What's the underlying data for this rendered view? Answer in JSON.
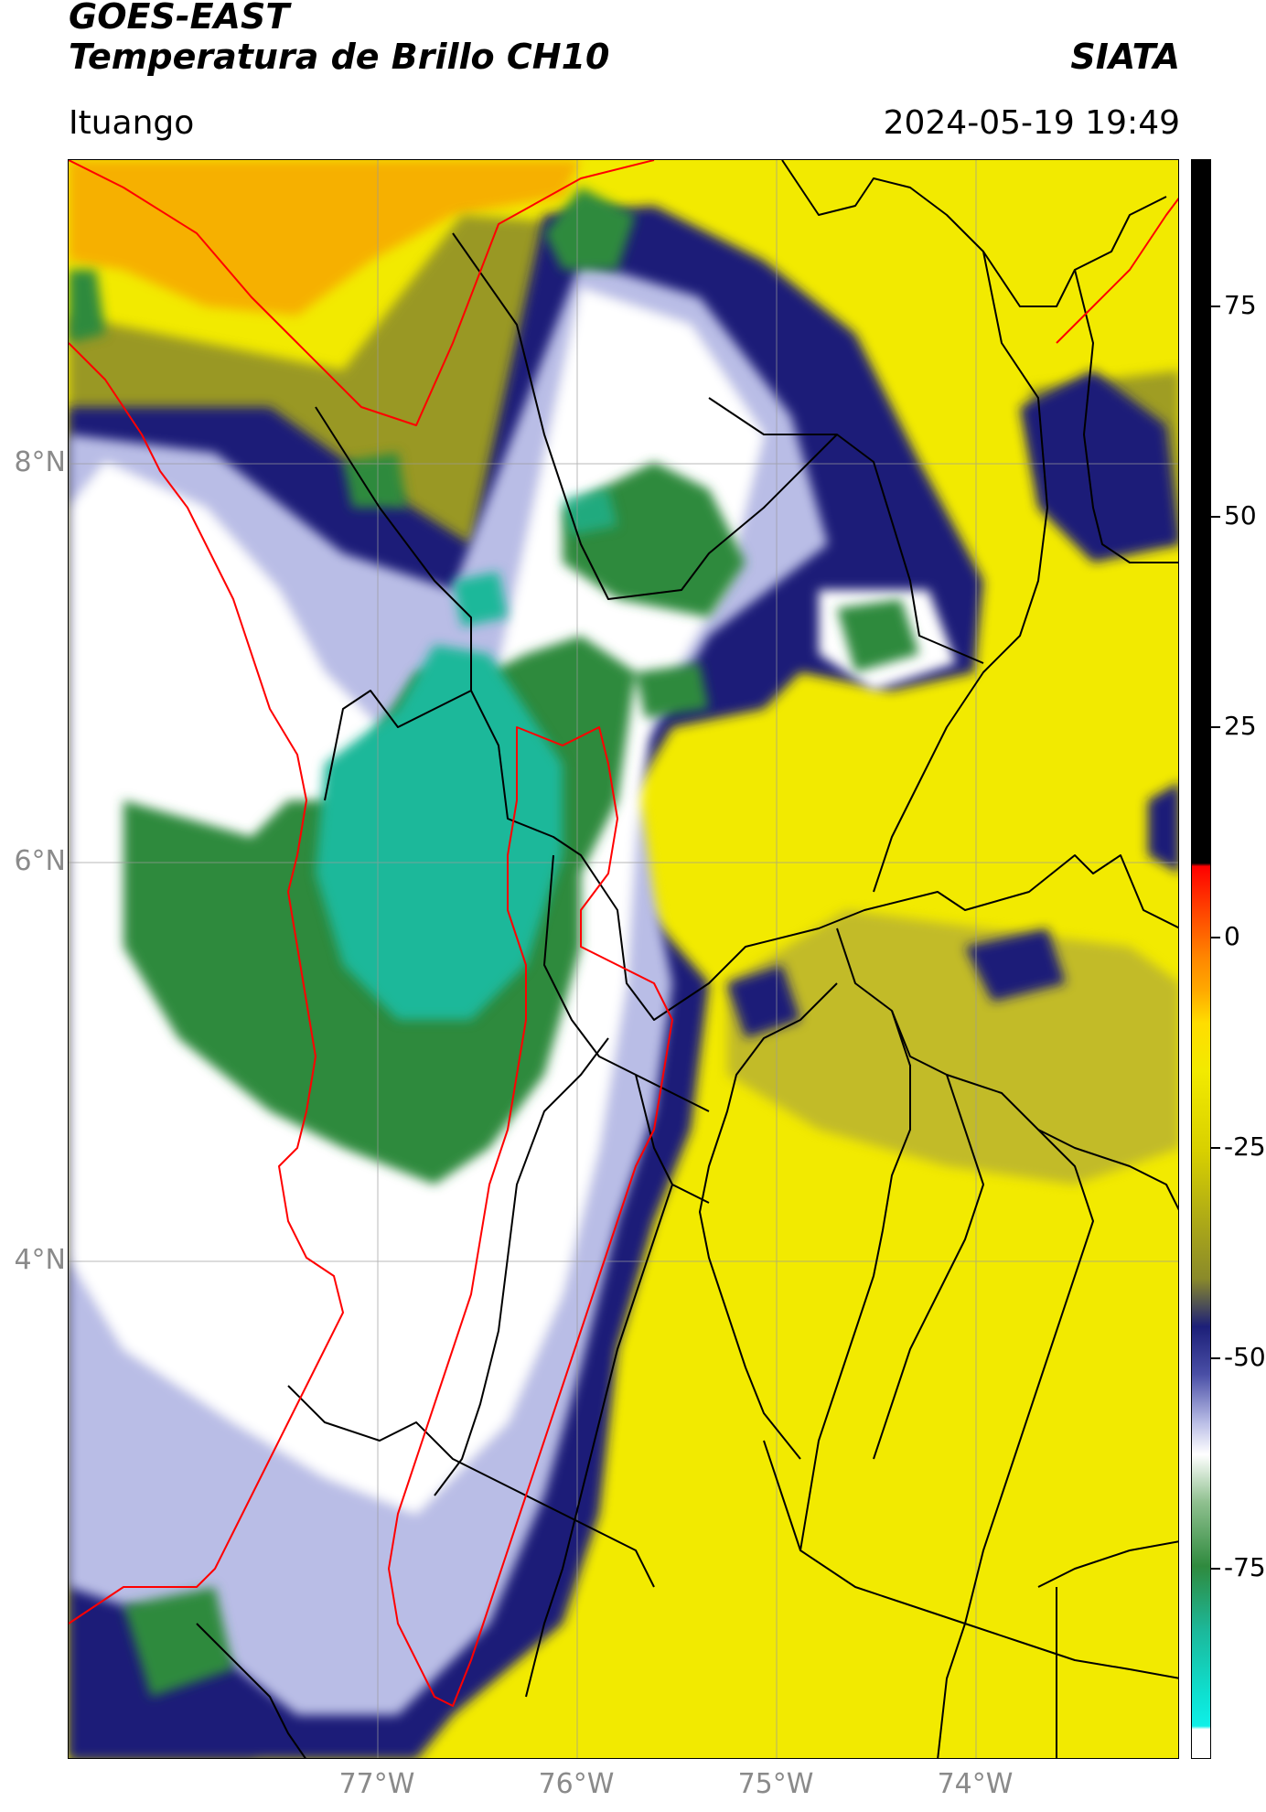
{
  "header": {
    "title_line1": "GOES-EAST",
    "title_line2": "Temperatura de Brillo CH10",
    "brand": "SIATA",
    "location": "Ituango",
    "timestamp": "2024-05-19 19:49"
  },
  "map": {
    "lat_labels": [
      "8°N",
      "6°N",
      "4°N"
    ],
    "lon_labels": [
      "77°W",
      "76°W",
      "75°W",
      "74°W"
    ],
    "colors": {
      "warm_yellow": "#f2ea00",
      "warm_orange": "#f7a600",
      "olive": "#8a8a2a",
      "navy": "#1c1f78",
      "light_blue": "#b9bde6",
      "white": "#ffffff",
      "green": "#2f8a3e",
      "teal": "#1cb89a",
      "border_black": "#000000",
      "border_red": "#ff0000"
    }
  },
  "colorbar": {
    "tick_labels": [
      "75",
      "50",
      "25",
      "0",
      "-25",
      "-50",
      "-75"
    ]
  }
}
